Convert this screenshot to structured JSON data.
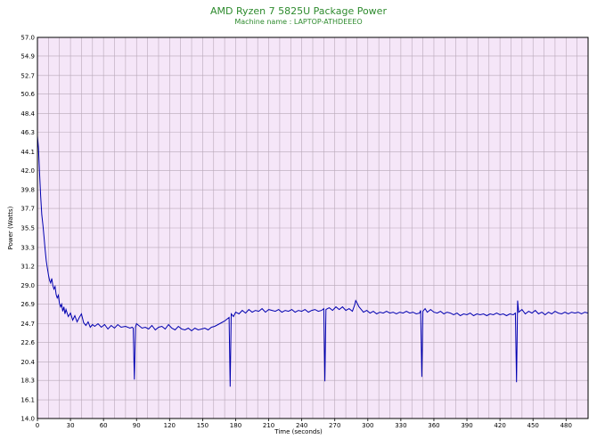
{
  "chart_data": {
    "type": "line",
    "title": "AMD Ryzen 7 5825U Package Power",
    "subtitle": "Machine name : LAPTOP-ATHDEEEO",
    "xlabel": "Time (seconds)",
    "ylabel": "Power (Watts)",
    "xlim": [
      0,
      500
    ],
    "ylim": [
      14.0,
      57.0
    ],
    "x_ticks": [
      "0",
      "30",
      "60",
      "90",
      "120",
      "150",
      "180",
      "210",
      "240",
      "270",
      "300",
      "330",
      "360",
      "390",
      "420",
      "450",
      "480"
    ],
    "y_ticks": [
      "14.0",
      "16.1",
      "18.3",
      "20.4",
      "22.6",
      "24.7",
      "26.9",
      "29.0",
      "31.2",
      "33.3",
      "35.5",
      "37.7",
      "39.8",
      "42.0",
      "44.1",
      "46.3",
      "48.4",
      "50.6",
      "52.7",
      "54.9",
      "57.0"
    ],
    "grid": true,
    "colors": {
      "line": "#0000b0",
      "plot_background": "#f5e6f8",
      "grid": "#b8a8b8",
      "title": "#2e8b2e"
    },
    "series": [
      {
        "points": [
          [
            0,
            45.9
          ],
          [
            1,
            44.5
          ],
          [
            2,
            41.5
          ],
          [
            3,
            39.0
          ],
          [
            4,
            37.0
          ],
          [
            5,
            35.8
          ],
          [
            6,
            34.5
          ],
          [
            7,
            33.0
          ],
          [
            8,
            31.8
          ],
          [
            9,
            31.0
          ],
          [
            10,
            30.2
          ],
          [
            11,
            29.6
          ],
          [
            12,
            29.3
          ],
          [
            13,
            29.8
          ],
          [
            14,
            29.0
          ],
          [
            15,
            28.6
          ],
          [
            16,
            28.9
          ],
          [
            17,
            28.0
          ],
          [
            18,
            27.6
          ],
          [
            19,
            27.9
          ],
          [
            20,
            27.0
          ],
          [
            21,
            26.6
          ],
          [
            22,
            26.9
          ],
          [
            23,
            26.1
          ],
          [
            24,
            26.6
          ],
          [
            25,
            25.8
          ],
          [
            26,
            26.3
          ],
          [
            28,
            25.5
          ],
          [
            30,
            25.9
          ],
          [
            32,
            25.1
          ],
          [
            34,
            25.6
          ],
          [
            36,
            24.9
          ],
          [
            38,
            25.4
          ],
          [
            40,
            25.8
          ],
          [
            42,
            24.8
          ],
          [
            44,
            24.5
          ],
          [
            46,
            24.9
          ],
          [
            48,
            24.3
          ],
          [
            50,
            24.6
          ],
          [
            52,
            24.4
          ],
          [
            55,
            24.7
          ],
          [
            58,
            24.3
          ],
          [
            61,
            24.6
          ],
          [
            64,
            24.1
          ],
          [
            67,
            24.5
          ],
          [
            70,
            24.2
          ],
          [
            73,
            24.6
          ],
          [
            76,
            24.3
          ],
          [
            80,
            24.4
          ],
          [
            84,
            24.2
          ],
          [
            86,
            24.3
          ],
          [
            87,
            24.2
          ],
          [
            88,
            18.4
          ],
          [
            89,
            24.3
          ],
          [
            90,
            24.7
          ],
          [
            92,
            24.5
          ],
          [
            95,
            24.2
          ],
          [
            98,
            24.3
          ],
          [
            101,
            24.1
          ],
          [
            104,
            24.5
          ],
          [
            107,
            24.0
          ],
          [
            110,
            24.3
          ],
          [
            113,
            24.4
          ],
          [
            116,
            24.1
          ],
          [
            119,
            24.6
          ],
          [
            122,
            24.2
          ],
          [
            125,
            24.0
          ],
          [
            128,
            24.4
          ],
          [
            131,
            24.1
          ],
          [
            134,
            24.0
          ],
          [
            137,
            24.2
          ],
          [
            140,
            23.9
          ],
          [
            143,
            24.2
          ],
          [
            146,
            24.0
          ],
          [
            149,
            24.1
          ],
          [
            152,
            24.2
          ],
          [
            155,
            24.0
          ],
          [
            158,
            24.3
          ],
          [
            161,
            24.4
          ],
          [
            164,
            24.6
          ],
          [
            167,
            24.8
          ],
          [
            170,
            25.0
          ],
          [
            172,
            25.2
          ],
          [
            174,
            25.4
          ],
          [
            175,
            17.6
          ],
          [
            176,
            25.8
          ],
          [
            178,
            25.5
          ],
          [
            180,
            26.0
          ],
          [
            183,
            25.8
          ],
          [
            186,
            26.2
          ],
          [
            189,
            25.9
          ],
          [
            192,
            26.3
          ],
          [
            195,
            26.0
          ],
          [
            198,
            26.2
          ],
          [
            201,
            26.1
          ],
          [
            204,
            26.4
          ],
          [
            207,
            26.0
          ],
          [
            210,
            26.3
          ],
          [
            213,
            26.2
          ],
          [
            216,
            26.1
          ],
          [
            219,
            26.3
          ],
          [
            222,
            26.0
          ],
          [
            225,
            26.2
          ],
          [
            228,
            26.1
          ],
          [
            231,
            26.3
          ],
          [
            234,
            26.0
          ],
          [
            237,
            26.2
          ],
          [
            240,
            26.1
          ],
          [
            243,
            26.3
          ],
          [
            246,
            26.0
          ],
          [
            249,
            26.2
          ],
          [
            252,
            26.3
          ],
          [
            255,
            26.1
          ],
          [
            258,
            26.2
          ],
          [
            260,
            26.4
          ],
          [
            261,
            18.2
          ],
          [
            262,
            26.3
          ],
          [
            265,
            26.5
          ],
          [
            268,
            26.2
          ],
          [
            271,
            26.6
          ],
          [
            274,
            26.3
          ],
          [
            277,
            26.6
          ],
          [
            280,
            26.2
          ],
          [
            283,
            26.4
          ],
          [
            286,
            26.1
          ],
          [
            288,
            26.8
          ],
          [
            289,
            27.3
          ],
          [
            290,
            27.1
          ],
          [
            292,
            26.6
          ],
          [
            294,
            26.3
          ],
          [
            296,
            26.0
          ],
          [
            299,
            26.2
          ],
          [
            302,
            25.9
          ],
          [
            305,
            26.1
          ],
          [
            308,
            25.8
          ],
          [
            311,
            26.0
          ],
          [
            314,
            25.9
          ],
          [
            317,
            26.1
          ],
          [
            320,
            25.9
          ],
          [
            323,
            26.0
          ],
          [
            326,
            25.8
          ],
          [
            329,
            26.0
          ],
          [
            332,
            25.9
          ],
          [
            335,
            26.1
          ],
          [
            338,
            25.9
          ],
          [
            341,
            26.0
          ],
          [
            344,
            25.8
          ],
          [
            347,
            25.9
          ],
          [
            348,
            26.2
          ],
          [
            349,
            18.7
          ],
          [
            350,
            26.1
          ],
          [
            352,
            26.4
          ],
          [
            354,
            26.0
          ],
          [
            357,
            26.3
          ],
          [
            360,
            26.0
          ],
          [
            363,
            25.9
          ],
          [
            366,
            26.1
          ],
          [
            369,
            25.8
          ],
          [
            372,
            26.0
          ],
          [
            375,
            25.9
          ],
          [
            378,
            25.7
          ],
          [
            381,
            25.9
          ],
          [
            384,
            25.6
          ],
          [
            387,
            25.8
          ],
          [
            390,
            25.7
          ],
          [
            393,
            25.9
          ],
          [
            396,
            25.6
          ],
          [
            399,
            25.8
          ],
          [
            402,
            25.7
          ],
          [
            405,
            25.8
          ],
          [
            408,
            25.6
          ],
          [
            411,
            25.8
          ],
          [
            414,
            25.7
          ],
          [
            417,
            25.9
          ],
          [
            420,
            25.7
          ],
          [
            423,
            25.8
          ],
          [
            426,
            25.6
          ],
          [
            429,
            25.8
          ],
          [
            432,
            25.7
          ],
          [
            434,
            25.9
          ],
          [
            435,
            18.1
          ],
          [
            436,
            27.3
          ],
          [
            437,
            26.0
          ],
          [
            440,
            26.3
          ],
          [
            443,
            25.8
          ],
          [
            446,
            26.1
          ],
          [
            449,
            25.9
          ],
          [
            452,
            26.2
          ],
          [
            455,
            25.8
          ],
          [
            458,
            26.0
          ],
          [
            461,
            25.7
          ],
          [
            464,
            26.0
          ],
          [
            467,
            25.8
          ],
          [
            470,
            26.1
          ],
          [
            473,
            25.9
          ],
          [
            476,
            25.8
          ],
          [
            479,
            26.0
          ],
          [
            482,
            25.8
          ],
          [
            485,
            26.0
          ],
          [
            488,
            25.9
          ],
          [
            491,
            26.0
          ],
          [
            494,
            25.8
          ],
          [
            497,
            26.0
          ],
          [
            500,
            25.9
          ]
        ]
      }
    ]
  }
}
